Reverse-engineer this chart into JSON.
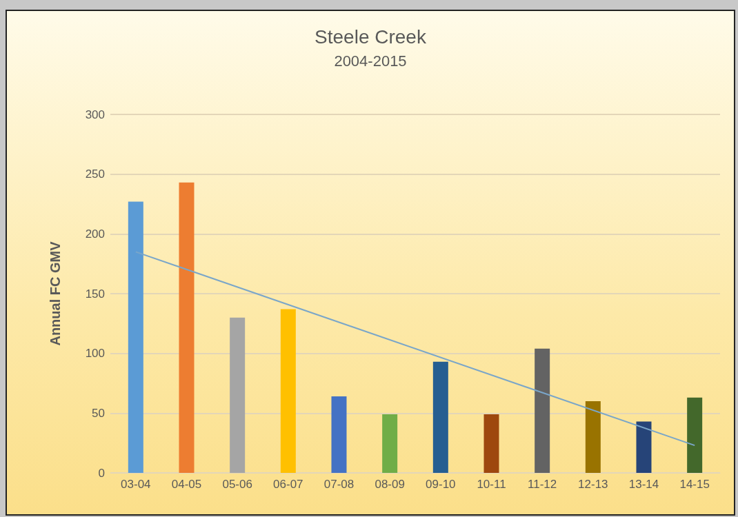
{
  "chart_data": {
    "type": "bar",
    "title": "Steele Creek",
    "subtitle": "2004-2015",
    "ylabel": "Annual FC GMV",
    "categories": [
      "03-04",
      "04-05",
      "05-06",
      "06-07",
      "07-08",
      "08-09",
      "09-10",
      "10-11",
      "11-12",
      "12-13",
      "13-14",
      "14-15"
    ],
    "series": [
      {
        "values": [
          227,
          243,
          130,
          137,
          64,
          49,
          93,
          49,
          104,
          60,
          43,
          63
        ],
        "colors": [
          "#5b9bd5",
          "#ed7d31",
          "#a5a5a5",
          "#ffc000",
          "#4472c4",
          "#70ad47",
          "#255e91",
          "#9e480e",
          "#636363",
          "#997300",
          "#264478",
          "#43682b"
        ]
      },
      {
        "type": "line",
        "x": [
          "03-04",
          "14-15"
        ],
        "values": [
          185,
          23
        ],
        "color": "#7aa6c9"
      }
    ],
    "ylim": [
      0,
      300
    ],
    "yticks": [
      0,
      50,
      100,
      150,
      200,
      250,
      300
    ],
    "grid": "y"
  }
}
